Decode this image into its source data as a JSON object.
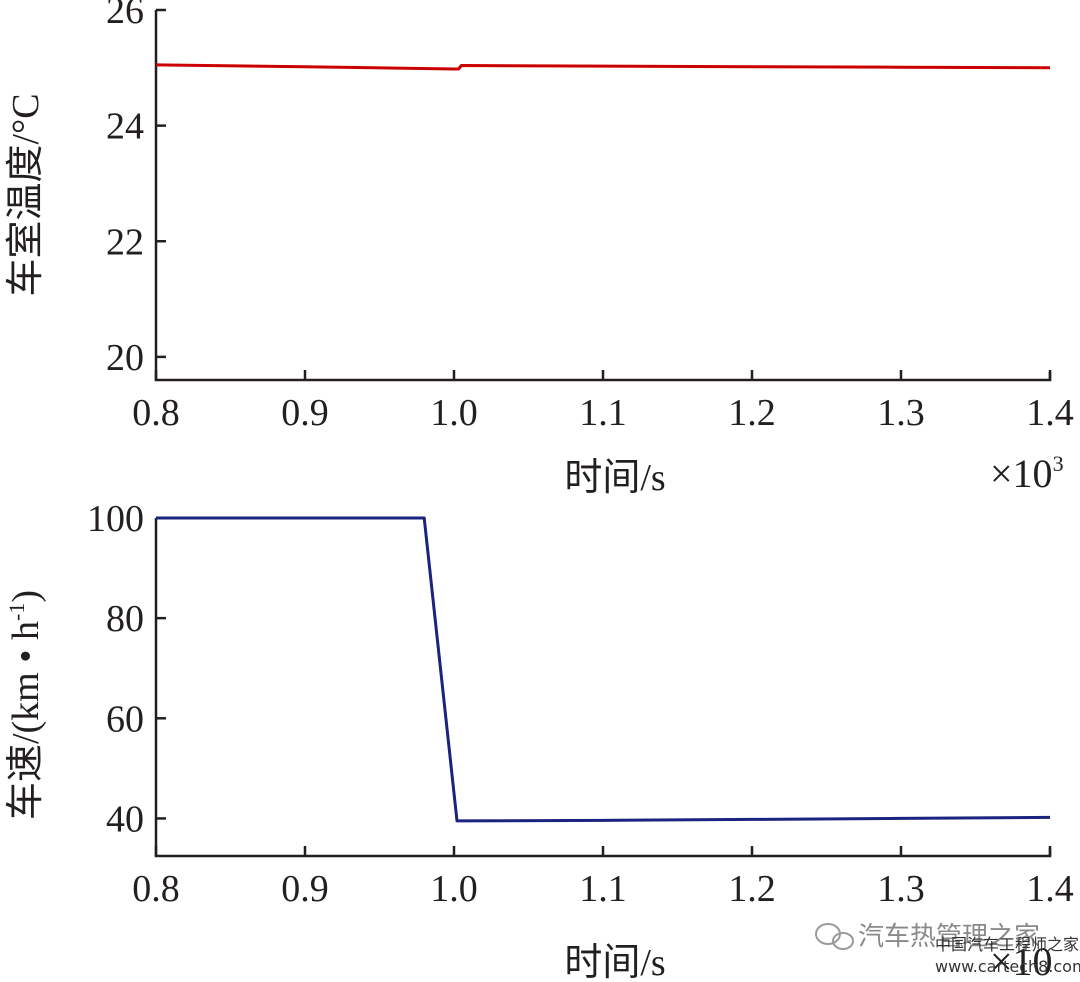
{
  "chart_data": [
    {
      "type": "line",
      "xlabel": "时间/s",
      "ylabel": "车室温度/°C",
      "x_multiplier": "×10",
      "x_multiplier_exp": "3",
      "xlim": [
        0.8,
        1.4
      ],
      "ylim": [
        19.6,
        26
      ],
      "xticks": [
        0.8,
        0.9,
        1.0,
        1.1,
        1.2,
        1.3,
        1.4
      ],
      "xtick_labels": [
        "0.8",
        "0.9",
        "1.0",
        "1.1",
        "1.2",
        "1.3",
        "1.4"
      ],
      "yticks": [
        20,
        22,
        24,
        26
      ],
      "ytick_labels": [
        "20",
        "22",
        "24",
        "26"
      ],
      "grid": false,
      "series": [
        {
          "color": "#cc0000",
          "x": [
            0.8,
            0.9,
            1.0,
            1.003,
            1.005,
            1.1,
            1.2,
            1.3,
            1.4
          ],
          "y": [
            25.05,
            25.02,
            24.98,
            24.98,
            25.04,
            25.03,
            25.02,
            25.01,
            25.0
          ]
        }
      ]
    },
    {
      "type": "line",
      "xlabel": "时间/s",
      "ylabel": "车速/(km • h",
      "ylabel_sup": "-1",
      "ylabel_close": ")",
      "x_multiplier": "×10",
      "xlim": [
        0.8,
        1.4
      ],
      "ylim": [
        32.5,
        100
      ],
      "xticks": [
        0.8,
        0.9,
        1.0,
        1.1,
        1.2,
        1.3,
        1.4
      ],
      "xtick_labels": [
        "0.8",
        "0.9",
        "1.0",
        "1.1",
        "1.2",
        "1.3",
        "1.4"
      ],
      "yticks": [
        40,
        60,
        80,
        100
      ],
      "ytick_labels": [
        "40",
        "60",
        "80",
        "100"
      ],
      "grid": false,
      "series": [
        {
          "color": "#1a237e",
          "x": [
            0.8,
            0.98,
            1.002,
            1.1,
            1.2,
            1.3,
            1.4
          ],
          "y": [
            100,
            100,
            39.5,
            39.6,
            39.8,
            40.0,
            40.2
          ]
        }
      ]
    }
  ],
  "watermark": {
    "text": "汽车热管理之家",
    "site_cn": "中国汽车工程师之家",
    "site_url": "www.cartech8.com"
  }
}
